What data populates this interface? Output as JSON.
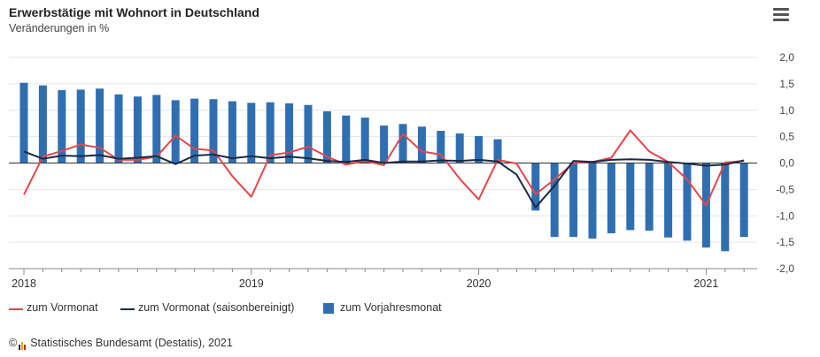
{
  "header": {
    "title": "Erwerbstätige mit Wohnort in Deutschland",
    "subtitle": "Veränderungen in %",
    "menu_icon": "hamburger-menu-icon"
  },
  "legend": {
    "items": [
      {
        "label": "zum Vormonat",
        "type": "line",
        "color": "#e8454b"
      },
      {
        "label": "zum Vormonat (saisonbereinigt)",
        "type": "line",
        "color": "#1a2a44"
      },
      {
        "label": "zum Vorjahresmonat",
        "type": "bar",
        "color": "#2f6fb1"
      }
    ]
  },
  "credit": {
    "copyright": "©",
    "text": "Statistisches Bundesamt (Destatis), 2021",
    "logo_icon": "destatis-logo-icon",
    "logo_colors": [
      "#222222",
      "#d6b200",
      "#d62020"
    ]
  },
  "chart_data": {
    "type": "bar+line",
    "x": [
      "2018-01",
      "2018-02",
      "2018-03",
      "2018-04",
      "2018-05",
      "2018-06",
      "2018-07",
      "2018-08",
      "2018-09",
      "2018-10",
      "2018-11",
      "2018-12",
      "2019-01",
      "2019-02",
      "2019-03",
      "2019-04",
      "2019-05",
      "2019-06",
      "2019-07",
      "2019-08",
      "2019-09",
      "2019-10",
      "2019-11",
      "2019-12",
      "2020-01",
      "2020-02",
      "2020-03",
      "2020-04",
      "2020-05",
      "2020-06",
      "2020-07",
      "2020-08",
      "2020-09",
      "2020-10",
      "2020-11",
      "2020-12",
      "2021-01",
      "2021-02",
      "2021-03"
    ],
    "x_tick_labels": [
      "2018",
      "2019",
      "2020",
      "2021"
    ],
    "y_axis": {
      "position": "right",
      "ylim": [
        -2.0,
        2.0
      ],
      "ticks": [
        "2,0",
        "1,5",
        "1,0",
        "0,5",
        "0,0",
        "-0,5",
        "-1,0",
        "-1,5",
        "-2,0"
      ],
      "tick_values": [
        2.0,
        1.5,
        1.0,
        0.5,
        0.0,
        -0.5,
        -1.0,
        -1.5,
        -2.0
      ],
      "grid": true
    },
    "series": [
      {
        "name": "zum Vorjahresmonat",
        "type": "bar",
        "color": "#2f6fb1",
        "values": [
          1.52,
          1.47,
          1.38,
          1.39,
          1.41,
          1.3,
          1.26,
          1.29,
          1.19,
          1.22,
          1.21,
          1.17,
          1.14,
          1.15,
          1.13,
          1.1,
          0.98,
          0.9,
          0.86,
          0.71,
          0.74,
          0.69,
          0.61,
          0.56,
          0.51,
          0.45,
          0.01,
          -0.9,
          -1.4,
          -1.4,
          -1.43,
          -1.33,
          -1.27,
          -1.28,
          -1.41,
          -1.47,
          -1.6,
          -1.67,
          -1.4
        ]
      },
      {
        "name": "zum Vormonat",
        "type": "line",
        "color": "#e8454b",
        "values": [
          -0.6,
          0.12,
          0.23,
          0.35,
          0.29,
          0.06,
          0.06,
          0.12,
          0.52,
          0.27,
          0.24,
          -0.25,
          -0.64,
          0.15,
          0.2,
          0.31,
          0.12,
          -0.03,
          0.04,
          -0.04,
          0.55,
          0.22,
          0.16,
          -0.3,
          -0.69,
          0.06,
          -0.01,
          -0.59,
          -0.31,
          0.0,
          0.02,
          0.1,
          0.62,
          0.22,
          0.02,
          -0.31,
          -0.8,
          0.01,
          0.04
        ]
      },
      {
        "name": "zum Vormonat (saisonbereinigt)",
        "type": "line",
        "color": "#1a2a44",
        "values": [
          0.22,
          0.08,
          0.14,
          0.13,
          0.15,
          0.08,
          0.1,
          0.13,
          -0.02,
          0.14,
          0.16,
          0.09,
          0.13,
          0.09,
          0.12,
          0.09,
          0.04,
          0.02,
          0.06,
          0.0,
          0.03,
          0.03,
          0.05,
          0.04,
          0.06,
          0.03,
          -0.22,
          -0.84,
          -0.43,
          0.04,
          0.02,
          0.06,
          0.07,
          0.06,
          0.02,
          -0.01,
          -0.05,
          -0.03,
          0.05
        ]
      }
    ],
    "legend_placement": "bottom-left"
  }
}
